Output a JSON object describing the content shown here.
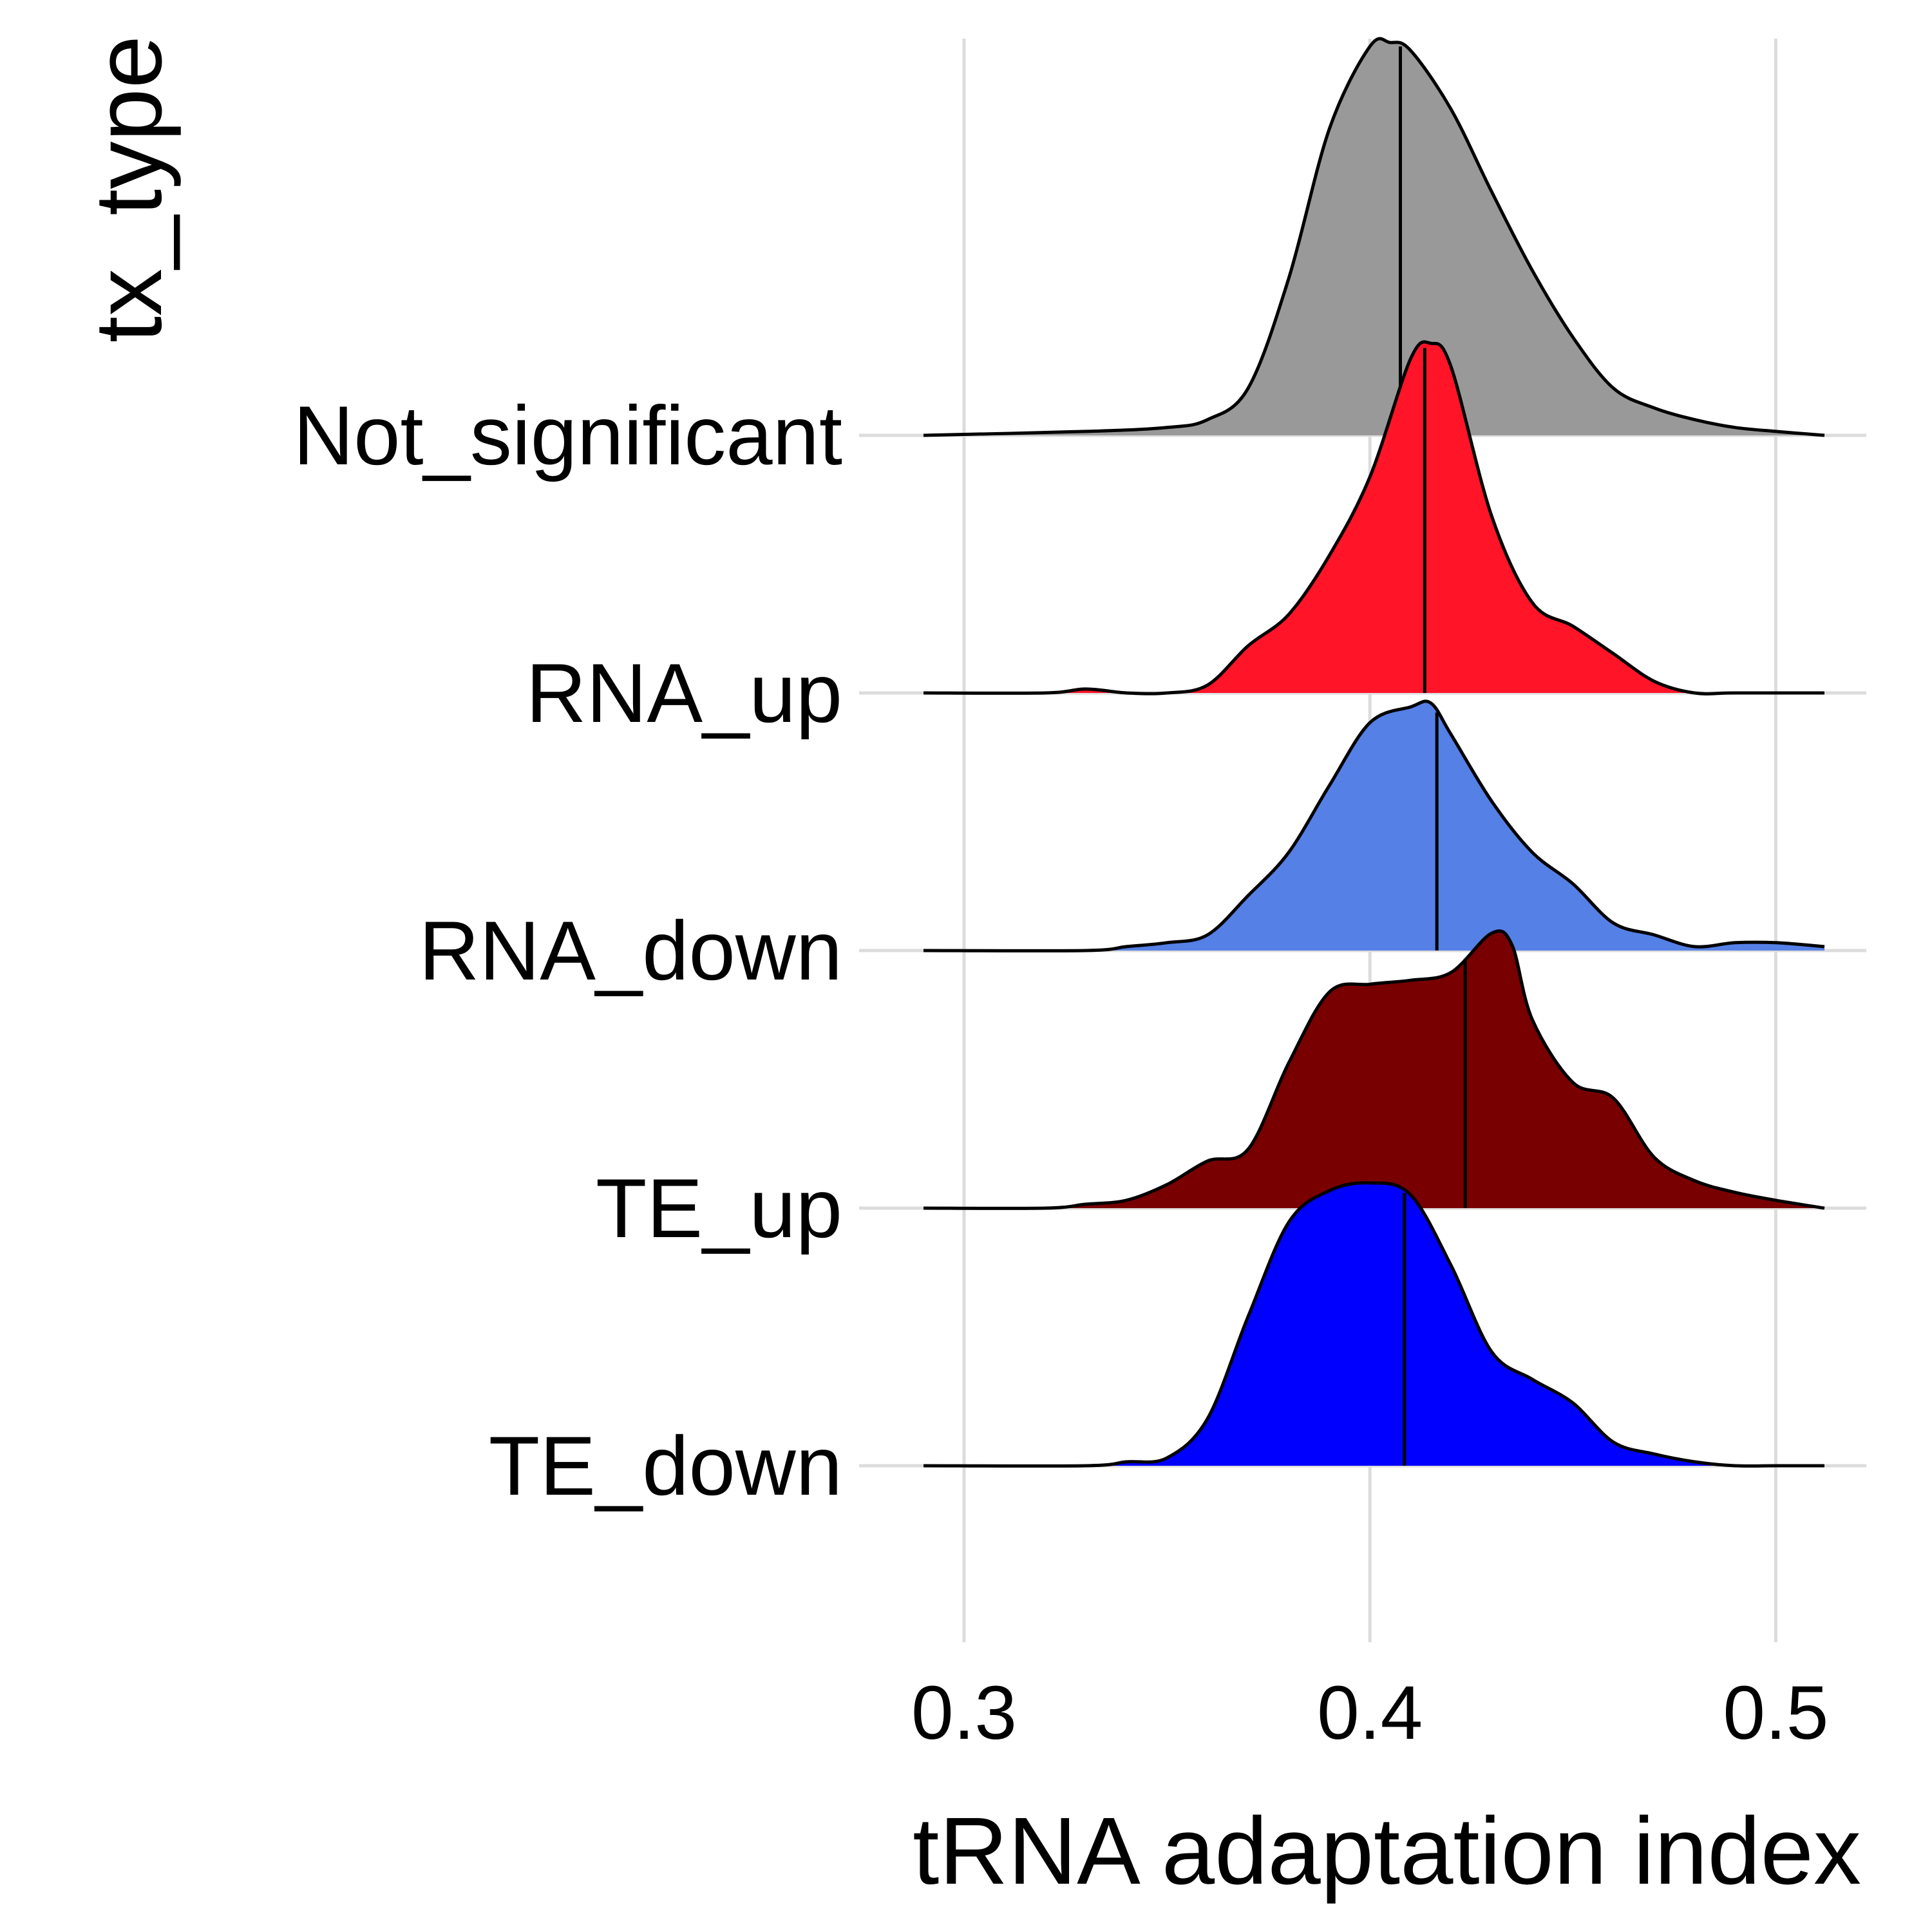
{
  "chart_data": {
    "type": "ridgeline",
    "xlabel": "tRNA adaptation index",
    "ylabel": "tx_type",
    "xlim": [
      0.29,
      0.512
    ],
    "x_ticks": [
      0.3,
      0.4,
      0.5
    ],
    "x_tick_labels": [
      "0.3",
      "0.4",
      "0.5"
    ],
    "grid": true,
    "legend": "none",
    "categories": [
      "Not_significant",
      "RNA_up",
      "RNA_down",
      "TE_up",
      "TE_down"
    ],
    "series": [
      {
        "name": "Not_significant",
        "color": "#999999",
        "median": 0.4075,
        "density_x": [
          0.29,
          0.33,
          0.35,
          0.36,
          0.37,
          0.38,
          0.39,
          0.4,
          0.405,
          0.41,
          0.42,
          0.43,
          0.44,
          0.45,
          0.46,
          0.47,
          0.48,
          0.49,
          0.5,
          0.512
        ],
        "density_y": [
          0,
          0.01,
          0.02,
          0.04,
          0.12,
          0.4,
          0.78,
          0.99,
          1.0,
          0.98,
          0.83,
          0.62,
          0.42,
          0.25,
          0.12,
          0.07,
          0.04,
          0.02,
          0.01,
          0
        ]
      },
      {
        "name": "RNA_up",
        "color": "#FF1428",
        "median": 0.4135,
        "density_x": [
          0.29,
          0.32,
          0.33,
          0.34,
          0.35,
          0.36,
          0.37,
          0.38,
          0.39,
          0.4,
          0.41,
          0.415,
          0.42,
          0.43,
          0.44,
          0.45,
          0.46,
          0.47,
          0.48,
          0.49,
          0.512
        ],
        "density_y": [
          0,
          0,
          0.01,
          0,
          0,
          0.02,
          0.12,
          0.2,
          0.35,
          0.55,
          0.85,
          0.89,
          0.83,
          0.45,
          0.23,
          0.17,
          0.1,
          0.03,
          0,
          0,
          0
        ]
      },
      {
        "name": "RNA_down",
        "color": "#5580E6",
        "median": 0.4165,
        "density_x": [
          0.29,
          0.33,
          0.34,
          0.35,
          0.36,
          0.37,
          0.38,
          0.39,
          0.4,
          0.41,
          0.415,
          0.42,
          0.43,
          0.44,
          0.45,
          0.46,
          0.47,
          0.48,
          0.49,
          0.5,
          0.512
        ],
        "density_y": [
          0,
          0,
          0.01,
          0.02,
          0.04,
          0.14,
          0.25,
          0.42,
          0.58,
          0.62,
          0.63,
          0.55,
          0.38,
          0.25,
          0.17,
          0.07,
          0.04,
          0.01,
          0.02,
          0.02,
          0.01
        ]
      },
      {
        "name": "TE_up",
        "color": "#780000",
        "median": 0.4235,
        "density_x": [
          0.29,
          0.32,
          0.33,
          0.34,
          0.35,
          0.36,
          0.37,
          0.38,
          0.39,
          0.4,
          0.41,
          0.42,
          0.43,
          0.435,
          0.44,
          0.45,
          0.46,
          0.47,
          0.48,
          0.49,
          0.5,
          0.512
        ],
        "density_y": [
          0,
          0,
          0.01,
          0.02,
          0.06,
          0.12,
          0.15,
          0.37,
          0.55,
          0.57,
          0.58,
          0.6,
          0.7,
          0.67,
          0.48,
          0.32,
          0.28,
          0.13,
          0.07,
          0.04,
          0.02,
          0
        ]
      },
      {
        "name": "TE_down",
        "color": "#0000FF",
        "median": 0.4085,
        "density_x": [
          0.29,
          0.33,
          0.34,
          0.35,
          0.36,
          0.37,
          0.38,
          0.39,
          0.4,
          0.41,
          0.42,
          0.43,
          0.44,
          0.45,
          0.46,
          0.47,
          0.48,
          0.49,
          0.5,
          0.512
        ],
        "density_y": [
          0,
          0,
          0.01,
          0.02,
          0.12,
          0.38,
          0.62,
          0.7,
          0.72,
          0.69,
          0.51,
          0.29,
          0.22,
          0.16,
          0.06,
          0.03,
          0.01,
          0,
          0,
          0
        ]
      }
    ]
  }
}
